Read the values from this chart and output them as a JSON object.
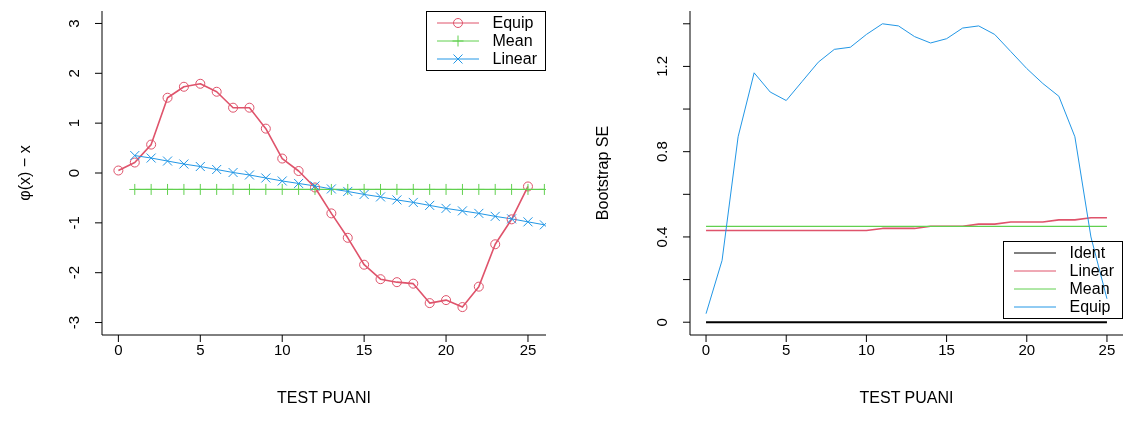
{
  "chart_data": [
    {
      "type": "line",
      "xlabel": "TEST PUANI",
      "ylabel": "φ(x) − x",
      "xlim": [
        -1,
        26.1
      ],
      "ylim": [
        -3.25,
        3.25
      ],
      "xticks": [
        0,
        5,
        10,
        15,
        20,
        25
      ],
      "yticks": [
        -3,
        -2,
        -1,
        0,
        1,
        2,
        3
      ],
      "legend": "top right",
      "series": [
        {
          "name": "Equip",
          "color": "#df536b",
          "marker": "circle",
          "x": [
            0,
            1,
            2,
            3,
            4,
            5,
            6,
            7,
            8,
            9,
            10,
            11,
            12,
            13,
            14,
            15,
            16,
            17,
            18,
            19,
            20,
            21,
            22,
            23,
            24,
            25
          ],
          "values": [
            0.05,
            0.21,
            0.57,
            1.51,
            1.73,
            1.79,
            1.63,
            1.31,
            1.31,
            0.89,
            0.29,
            0.04,
            -0.29,
            -0.81,
            -1.3,
            -1.84,
            -2.13,
            -2.19,
            -2.22,
            -2.61,
            -2.55,
            -2.69,
            -2.28,
            -1.43,
            -0.93,
            -0.27
          ]
        },
        {
          "name": "Mean",
          "color": "#61d04f",
          "marker": "plus",
          "x": [
            1,
            2,
            3,
            4,
            5,
            6,
            7,
            8,
            9,
            10,
            11,
            12,
            13,
            14,
            15,
            16,
            17,
            18,
            19,
            20,
            21,
            22,
            23,
            24,
            25,
            26
          ],
          "values": [
            -0.33,
            -0.33,
            -0.33,
            -0.33,
            -0.33,
            -0.33,
            -0.33,
            -0.33,
            -0.33,
            -0.33,
            -0.33,
            -0.33,
            -0.33,
            -0.33,
            -0.33,
            -0.33,
            -0.33,
            -0.33,
            -0.33,
            -0.33,
            -0.33,
            -0.33,
            -0.33,
            -0.33,
            -0.33,
            -0.33
          ]
        },
        {
          "name": "Linear",
          "color": "#2297e6",
          "marker": "cross",
          "x": [
            1,
            2,
            3,
            4,
            5,
            6,
            7,
            8,
            9,
            10,
            11,
            12,
            13,
            14,
            15,
            16,
            17,
            18,
            19,
            20,
            21,
            22,
            23,
            24,
            25,
            26
          ],
          "values": [
            0.35,
            0.3,
            0.24,
            0.18,
            0.13,
            0.07,
            0.01,
            -0.04,
            -0.1,
            -0.16,
            -0.21,
            -0.26,
            -0.32,
            -0.37,
            -0.43,
            -0.48,
            -0.54,
            -0.59,
            -0.65,
            -0.71,
            -0.76,
            -0.81,
            -0.87,
            -0.92,
            -0.98,
            -1.04
          ]
        }
      ]
    },
    {
      "type": "line",
      "xlabel": "TEST PUANI",
      "ylabel": "Bootstrap SE",
      "xlim": [
        -1,
        26
      ],
      "ylim": [
        -0.06,
        1.46
      ],
      "xticks": [
        0,
        5,
        10,
        15,
        20,
        25
      ],
      "yticks": [
        0,
        {
          "value": 0.2,
          "label": null
        },
        0.4,
        {
          "value": 0.6,
          "label": null
        },
        0.8,
        {
          "value": 1.0,
          "label": null
        },
        1.2,
        {
          "value": 1.4,
          "label": null
        }
      ],
      "legend": "bottom right",
      "series": [
        {
          "name": "Ident",
          "color": "#000000",
          "x": [
            0,
            25
          ],
          "values": [
            0,
            0
          ]
        },
        {
          "name": "Linear",
          "color": "#df536b",
          "x": [
            0,
            1,
            2,
            3,
            4,
            5,
            6,
            7,
            8,
            9,
            10,
            11,
            12,
            13,
            14,
            15,
            16,
            17,
            18,
            19,
            20,
            21,
            22,
            23,
            24,
            25
          ],
          "values": [
            0.43,
            0.43,
            0.43,
            0.43,
            0.43,
            0.43,
            0.43,
            0.43,
            0.43,
            0.43,
            0.43,
            0.44,
            0.44,
            0.44,
            0.45,
            0.45,
            0.45,
            0.46,
            0.46,
            0.47,
            0.47,
            0.47,
            0.48,
            0.48,
            0.49,
            0.49
          ]
        },
        {
          "name": "Mean",
          "color": "#61d04f",
          "x": [
            0,
            25
          ],
          "values": [
            0.45,
            0.45
          ]
        },
        {
          "name": "Equip",
          "color": "#2297e6",
          "x": [
            0,
            1,
            2,
            3,
            4,
            5,
            6,
            7,
            8,
            9,
            10,
            11,
            12,
            13,
            14,
            15,
            16,
            17,
            18,
            19,
            20,
            21,
            22,
            23,
            24,
            25
          ],
          "values": [
            0.04,
            0.29,
            0.87,
            1.17,
            1.08,
            1.04,
            1.13,
            1.22,
            1.28,
            1.29,
            1.35,
            1.4,
            1.39,
            1.34,
            1.31,
            1.33,
            1.38,
            1.39,
            1.35,
            1.27,
            1.19,
            1.12,
            1.06,
            0.87,
            0.4,
            0.11
          ]
        }
      ]
    }
  ]
}
